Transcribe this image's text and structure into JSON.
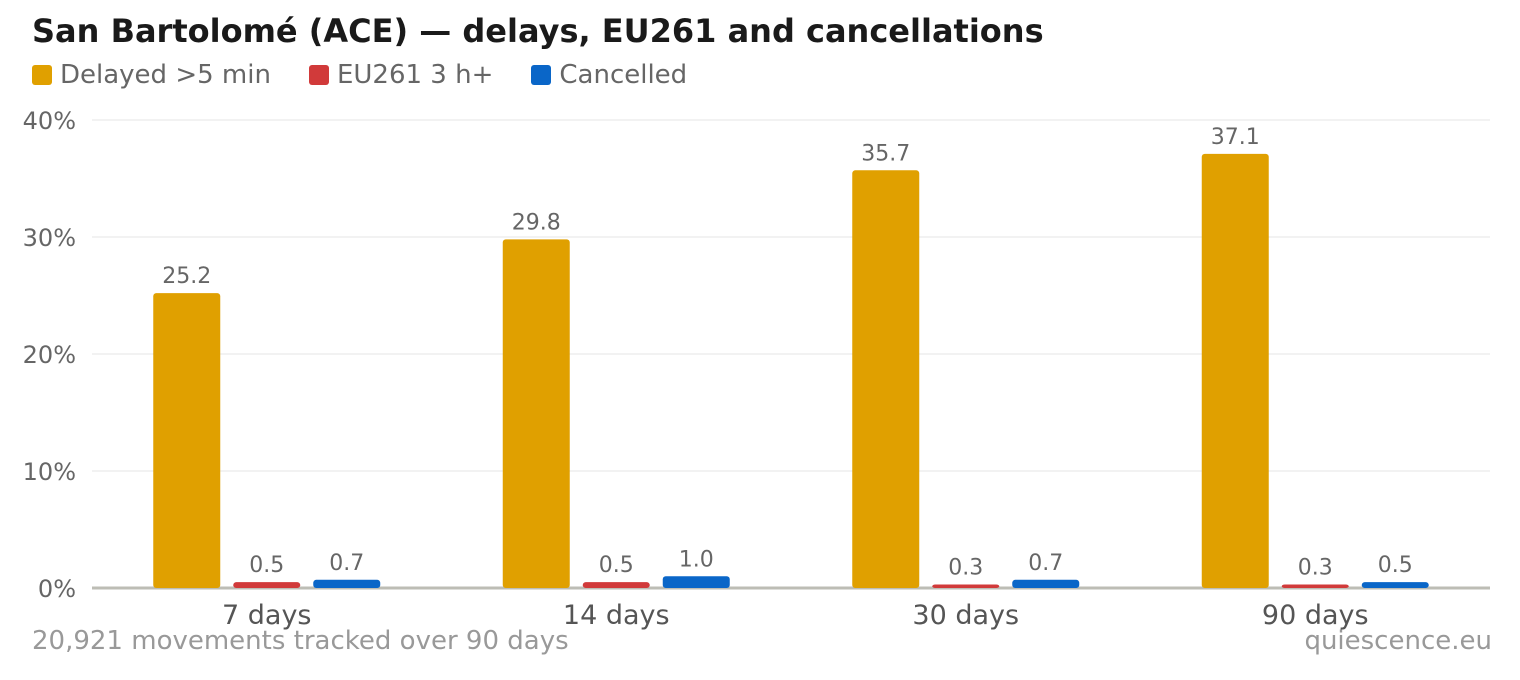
{
  "chart_data": {
    "type": "bar",
    "title": "San Bartolomé (ACE) — delays, EU261 and cancellations",
    "categories": [
      "7 days",
      "14 days",
      "30 days",
      "90 days"
    ],
    "series": [
      {
        "name": "Delayed >5 min",
        "color": "#e0a000",
        "values": [
          25.2,
          29.8,
          35.7,
          37.1
        ]
      },
      {
        "name": "EU261 3 h+",
        "color": "#d13a3a",
        "values": [
          0.5,
          0.5,
          0.3,
          0.3
        ]
      },
      {
        "name": "Cancelled",
        "color": "#0a66c8",
        "values": [
          0.7,
          1.0,
          0.7,
          0.5
        ]
      }
    ],
    "value_labels": [
      [
        "25.2",
        "29.8",
        "35.7",
        "37.1"
      ],
      [
        "0.5",
        "0.5",
        "0.3",
        "0.3"
      ],
      [
        "0.7",
        "1.0",
        "0.7",
        "0.5"
      ]
    ],
    "ylim": [
      0,
      40
    ],
    "yticks": [
      "0%",
      "10%",
      "20%",
      "30%",
      "40%"
    ],
    "grid": true,
    "legend_position": "top-left"
  },
  "footer": {
    "note": "20,921 movements tracked over 90 days",
    "source": "quiescence.eu"
  }
}
